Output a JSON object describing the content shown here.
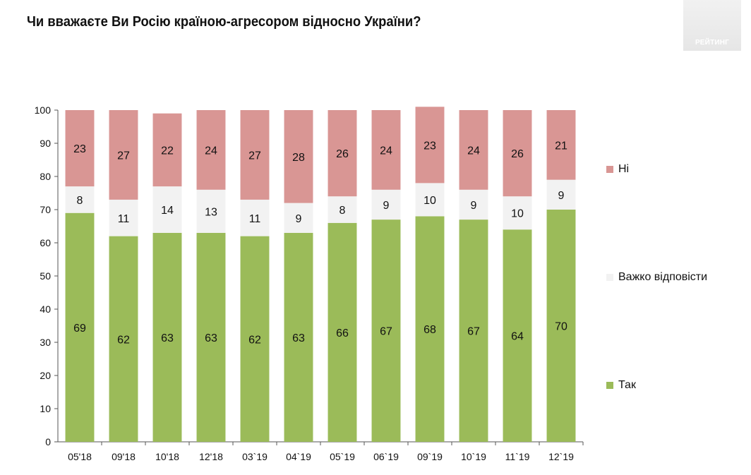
{
  "title": "Чи вважаєте Ви Росію країною-агресором відносно України?",
  "logo_text": "РЕЙТИНГ",
  "chart_data": {
    "type": "bar",
    "stacked": true,
    "categories": [
      "05'18",
      "09'18",
      "10'18",
      "12'18",
      "03`19",
      "04`19",
      "05`19",
      "06`19",
      "09`19",
      "10`19",
      "11`19",
      "12`19"
    ],
    "series": [
      {
        "name": "Так",
        "color": "#9bbb59",
        "values": [
          69,
          62,
          63,
          63,
          62,
          63,
          66,
          67,
          68,
          67,
          64,
          70
        ]
      },
      {
        "name": "Важко відповісти",
        "color": "#f2f2f2",
        "values": [
          8,
          11,
          14,
          13,
          11,
          9,
          8,
          9,
          10,
          9,
          10,
          9
        ]
      },
      {
        "name": "Ні",
        "color": "#d99694",
        "values": [
          23,
          27,
          22,
          24,
          27,
          28,
          26,
          24,
          23,
          24,
          26,
          21
        ]
      }
    ],
    "ylim": [
      0,
      100
    ],
    "yticks": [
      0,
      10,
      20,
      30,
      40,
      50,
      60,
      70,
      80,
      90,
      100
    ],
    "grid": false,
    "legend_position": "right"
  }
}
